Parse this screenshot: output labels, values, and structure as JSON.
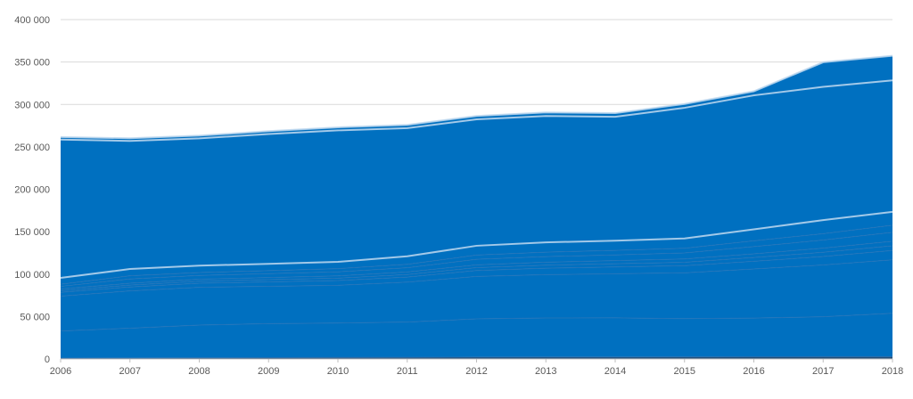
{
  "chart_data": {
    "type": "area",
    "stacked": true,
    "title": "",
    "xlabel": "",
    "ylabel": "",
    "x": [
      "2006",
      "2007",
      "2008",
      "2009",
      "2010",
      "2011",
      "2012",
      "2013",
      "2014",
      "2015",
      "2016",
      "2017",
      "2018"
    ],
    "ylim": [
      0,
      400000
    ],
    "yticks": [
      0,
      50000,
      100000,
      150000,
      200000,
      250000,
      300000,
      350000,
      400000
    ],
    "ytick_labels": [
      "0",
      "50 000",
      "100 000",
      "150 000",
      "200 000",
      "250 000",
      "300 000",
      "350 000",
      "400 000"
    ],
    "grid": true,
    "legend": "none",
    "fill_color": "#0070c0",
    "series": [
      {
        "values": [
          1000,
          1200,
          1400,
          1600,
          1800,
          2000,
          2200,
          2300,
          2400,
          2500,
          2600,
          2700,
          2800
        ],
        "color": "#1f4e79"
      },
      {
        "values": [
          32000,
          35000,
          38500,
          40000,
          40500,
          41500,
          45000,
          46000,
          46000,
          45000,
          45500,
          47000,
          51000
        ],
        "color": "#0070c0"
      },
      {
        "values": [
          41000,
          44000,
          44500,
          44000,
          44500,
          47000,
          50000,
          51000,
          52000,
          54000,
          58000,
          61000,
          63000
        ],
        "color": "#0070c0"
      },
      {
        "values": [
          4500,
          4600,
          4800,
          5200,
          5600,
          6000,
          7000,
          7600,
          8000,
          8400,
          9000,
          10000,
          11000
        ],
        "color": "#0070c0"
      },
      {
        "values": [
          2000,
          2200,
          2400,
          2600,
          2800,
          3000,
          3400,
          3600,
          3800,
          4000,
          4400,
          5000,
          5500
        ],
        "color": "#0070c0"
      },
      {
        "values": [
          2000,
          2200,
          2300,
          2500,
          2700,
          3000,
          3300,
          3500,
          3700,
          4000,
          4400,
          4900,
          5400
        ],
        "color": "#0070c0"
      },
      {
        "values": [
          3000,
          5000,
          4500,
          4600,
          4700,
          5000,
          6500,
          6600,
          6700,
          7000,
          8500,
          9500,
          10500
        ],
        "color": "#0070c0"
      },
      {
        "values": [
          2500,
          3800,
          3500,
          3600,
          3800,
          4000,
          5000,
          5200,
          5400,
          5600,
          6800,
          7600,
          8400
        ],
        "color": "#0070c0"
      },
      {
        "values": [
          7500,
          8000,
          8100,
          8000,
          8000,
          9500,
          11000,
          11600,
          11400,
          11500,
          13500,
          16000,
          15800
        ],
        "color": "#0070c0"
      },
      {
        "values": [
          163000,
          151000,
          150000,
          153000,
          155000,
          151000,
          149000,
          149000,
          146000,
          154000,
          158000,
          157000,
          155000
        ],
        "color": "#0070c0"
      },
      {
        "values": [
          3000,
          3100,
          3200,
          3400,
          3600,
          3800,
          4000,
          4200,
          4300,
          4500,
          4800,
          29000,
          29000
        ],
        "color": "#0070c0"
      }
    ]
  }
}
